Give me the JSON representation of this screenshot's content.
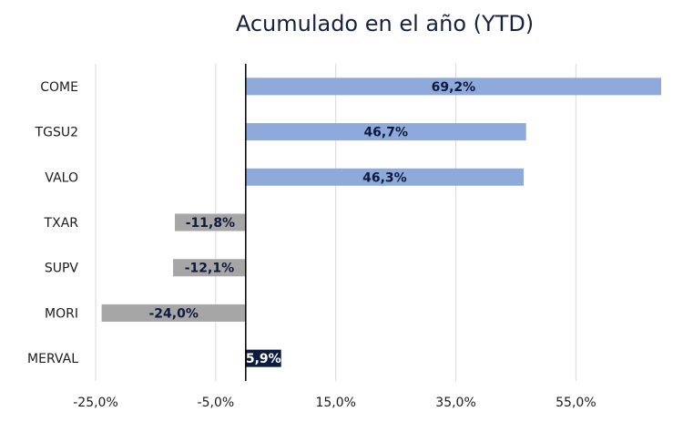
{
  "chart_data": {
    "type": "bar",
    "orientation": "horizontal",
    "title": "Acumulado en el año (YTD)",
    "categories": [
      "COME",
      "TGSU2",
      "VALO",
      "TXAR",
      "SUPV",
      "MORI",
      "MERVAL"
    ],
    "values": [
      69.2,
      46.7,
      46.3,
      -11.8,
      -12.1,
      -24.0,
      5.9
    ],
    "data_labels": [
      "69,2%",
      "46,7%",
      "46,3%",
      "-11,8%",
      "-12,1%",
      "-24,0%",
      "5,9%"
    ],
    "xlim": [
      -25,
      69.2
    ],
    "x_ticks": [
      -25,
      -5,
      15,
      35,
      55
    ],
    "x_tick_labels": [
      "-25,0%",
      "-5,0%",
      "15,0%",
      "35,0%",
      "55,0%"
    ],
    "grid": true,
    "legend": "none",
    "colors": {
      "positive": "#8eaadb",
      "negative": "#a6a6a6",
      "index": "#0e1a3e",
      "label_dark": "#0e1a3e",
      "label_light": "#ffffff",
      "grid": "#d9d9d9",
      "zero_axis": "#000000"
    }
  }
}
